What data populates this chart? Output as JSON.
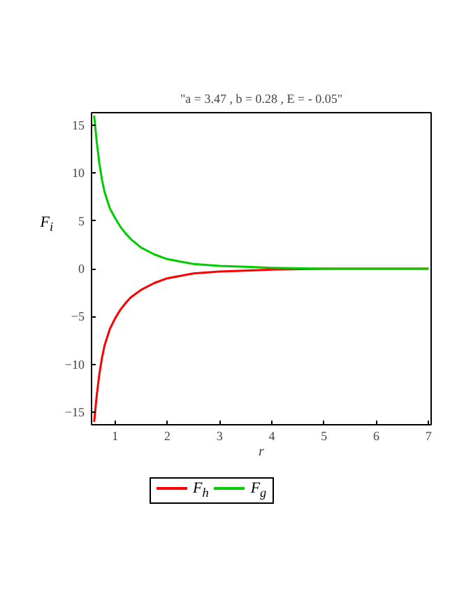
{
  "chart_data": {
    "type": "line",
    "title": "\"a = 3.47 , b = 0.28 , E = - 0.05\"",
    "xlabel": "r",
    "ylabel": "F$_{i}$",
    "x": [
      0.6,
      0.65,
      0.7,
      0.75,
      0.8,
      0.9,
      1.0,
      1.1,
      1.2,
      1.3,
      1.5,
      1.75,
      2.0,
      2.5,
      3.0,
      3.5,
      4.0,
      5.0,
      6.0,
      7.0
    ],
    "series": [
      {
        "name": "F$_{h}$",
        "color": "#ff0000",
        "values": [
          -16,
          -13.2,
          -11,
          -9.3,
          -8,
          -6.3,
          -5.2,
          -4.3,
          -3.6,
          -3.0,
          -2.2,
          -1.5,
          -1.0,
          -0.5,
          -0.3,
          -0.2,
          -0.1,
          0,
          0,
          0
        ]
      },
      {
        "name": "F$_{g}$",
        "color": "#00cc00",
        "values": [
          16,
          13.2,
          11,
          9.3,
          8,
          6.3,
          5.3,
          4.4,
          3.7,
          3.1,
          2.2,
          1.5,
          1.0,
          0.5,
          0.3,
          0.2,
          0.1,
          0,
          0,
          0
        ]
      }
    ],
    "xlim": [
      0.55,
      7.05
    ],
    "ylim": [
      -16.3,
      16.3
    ],
    "xticks": [
      1,
      2,
      3,
      4,
      5,
      6,
      7
    ],
    "yticks": [
      -15,
      -10,
      -5,
      0,
      5,
      10,
      15
    ],
    "grid": false,
    "legend": "bottom",
    "line_style": "solid",
    "marker": "none"
  }
}
